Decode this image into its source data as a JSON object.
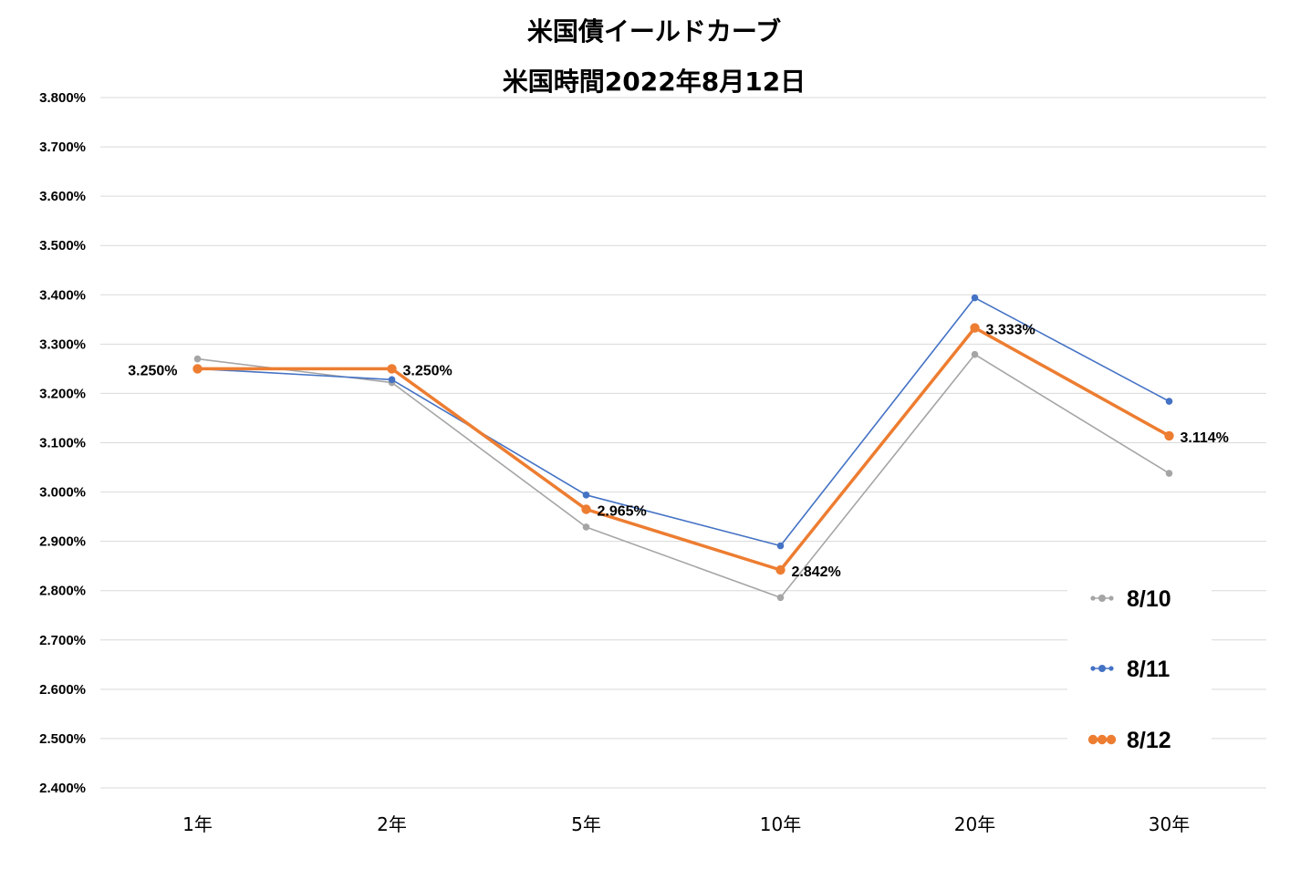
{
  "chart_data": {
    "type": "line",
    "title": "米国債イールドカーブ",
    "subtitle": "米国時間2022年8月12日",
    "categories": [
      "1年",
      "2年",
      "5年",
      "10年",
      "20年",
      "30年"
    ],
    "ylim": [
      2.4,
      3.8
    ],
    "y_ticks": [
      "2.400%",
      "2.500%",
      "2.600%",
      "2.700%",
      "2.800%",
      "2.900%",
      "3.000%",
      "3.100%",
      "3.200%",
      "3.300%",
      "3.400%",
      "3.500%",
      "3.600%",
      "3.700%",
      "3.800%"
    ],
    "grid": true,
    "legend_position": "right",
    "series": [
      {
        "name": "8/10",
        "color": "#a5a5a5",
        "width": "thin",
        "values": [
          3.27,
          3.222,
          2.929,
          2.786,
          3.279,
          3.038
        ]
      },
      {
        "name": "8/11",
        "color": "#4472c4",
        "width": "thin",
        "values": [
          3.25,
          3.228,
          2.994,
          2.891,
          3.394,
          3.184
        ]
      },
      {
        "name": "8/12",
        "color": "#ed7d31",
        "width": "thick",
        "values": [
          3.25,
          3.25,
          2.965,
          2.842,
          3.333,
          3.114
        ]
      }
    ],
    "data_labels": {
      "series": "8/12",
      "texts": [
        "3.250%",
        "3.250%",
        "2.965%",
        "2.842%",
        "3.333%",
        "3.114%"
      ],
      "placement": [
        "left",
        "right",
        "right",
        "right",
        "right",
        "right"
      ]
    }
  }
}
